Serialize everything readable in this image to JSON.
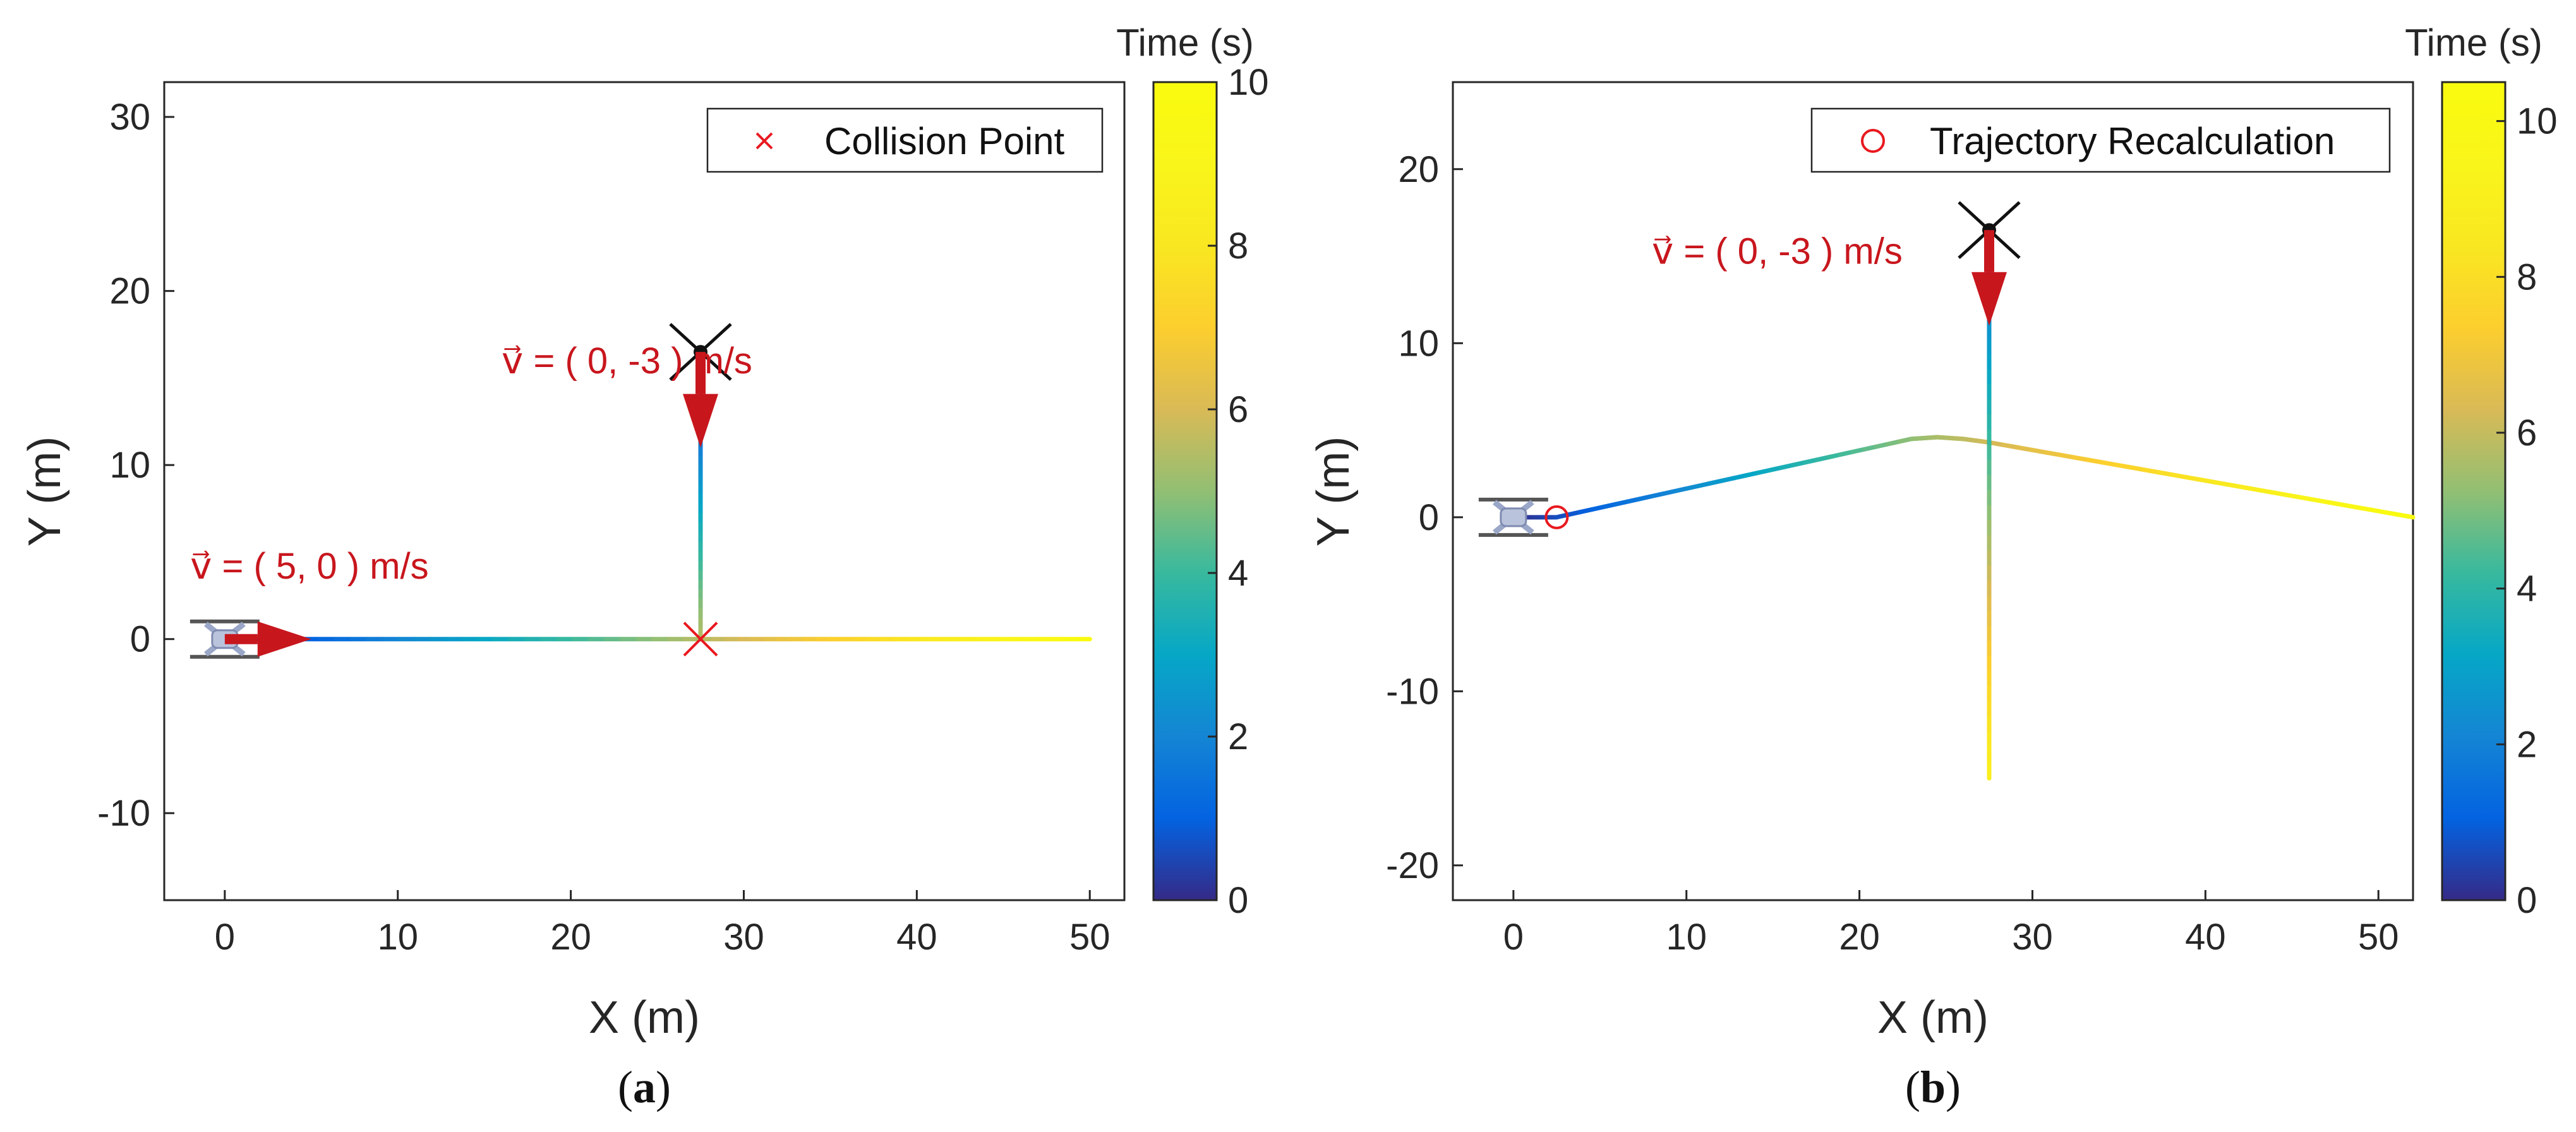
{
  "chart_data": [
    {
      "panel_label": "(a)",
      "panel_letter": "a",
      "type": "line",
      "xlabel": "X (m)",
      "ylabel": "Y (m)",
      "xlim": [
        -3.5,
        52
      ],
      "ylim": [
        -15,
        32
      ],
      "xticks": [
        0,
        10,
        20,
        30,
        40,
        50
      ],
      "yticks": [
        -10,
        0,
        10,
        20,
        30
      ],
      "colorbar": {
        "title": "Time (s)",
        "range": [
          0,
          10
        ],
        "ticks": [
          0,
          2,
          4,
          6,
          8,
          10
        ]
      },
      "legend": {
        "label": "Collision Point",
        "marker": "x",
        "color": "#e8191f",
        "position": "top-right"
      },
      "series": [
        {
          "name": "drone-1-trajectory",
          "points": [
            [
              0,
              0,
              0
            ],
            [
              27.5,
              0,
              5.5
            ],
            [
              50,
              0,
              10
            ]
          ]
        },
        {
          "name": "drone-2-trajectory",
          "points": [
            [
              27.5,
              16.5,
              0
            ],
            [
              27.5,
              0,
              5.5
            ]
          ]
        }
      ],
      "markers": [
        {
          "type": "collision-x",
          "x": 27.5,
          "y": 0
        }
      ],
      "drones": [
        {
          "x": 0,
          "y": 0,
          "style": "top"
        },
        {
          "x": 27.5,
          "y": 16.5,
          "style": "cross"
        }
      ],
      "velocity_arrows": [
        {
          "label": "v⃗ = ( 5, 0 ) m/s",
          "x": 0,
          "y": 0,
          "dx": 5,
          "dy": 0,
          "text_x": -2,
          "text_y": 4.2
        },
        {
          "label": "v⃗ = ( 0, -3 ) m/s",
          "x": 27.5,
          "y": 16.5,
          "dx": 0,
          "dy": -5.5,
          "text_x": 16,
          "text_y": 16
        }
      ]
    },
    {
      "panel_label": "(b)",
      "panel_letter": "b",
      "type": "line",
      "xlabel": "X (m)",
      "ylabel": "Y (m)",
      "xlim": [
        -3.5,
        52
      ],
      "ylim": [
        -22,
        25
      ],
      "xticks": [
        0,
        10,
        20,
        30,
        40,
        50
      ],
      "yticks": [
        -20,
        -10,
        0,
        10,
        20
      ],
      "colorbar": {
        "title": "Time (s)",
        "range": [
          0,
          10.5
        ],
        "ticks": [
          0,
          2,
          4,
          6,
          8,
          10
        ]
      },
      "legend": {
        "label": "Trajectory Recalculation",
        "marker": "o",
        "color": "#e8191f",
        "position": "top-right"
      },
      "series": [
        {
          "name": "drone-1-trajectory",
          "points": [
            [
              0,
              0,
              0
            ],
            [
              2.5,
              0,
              0.6
            ],
            [
              23,
              4.5,
              5.2
            ],
            [
              24.5,
              4.6,
              5.6
            ],
            [
              26,
              4.5,
              5.9
            ],
            [
              27.5,
              4.3,
              6.2
            ],
            [
              52,
              0,
              10.5
            ]
          ]
        },
        {
          "name": "drone-2-trajectory",
          "points": [
            [
              27.5,
              16.5,
              0
            ],
            [
              27.5,
              11,
              2.5
            ],
            [
              27.5,
              -15,
              9
            ]
          ]
        }
      ],
      "markers": [
        {
          "type": "recalc-o",
          "x": 2.5,
          "y": 0
        }
      ],
      "drones": [
        {
          "x": 0,
          "y": 0,
          "style": "top"
        },
        {
          "x": 27.5,
          "y": 16.5,
          "style": "cross"
        }
      ],
      "velocity_arrows": [
        {
          "label": "v⃗ = ( 0, -3 ) m/s",
          "x": 27.5,
          "y": 16.5,
          "dx": 0,
          "dy": -5.5,
          "text_x": 8,
          "text_y": 15.3
        }
      ]
    }
  ]
}
